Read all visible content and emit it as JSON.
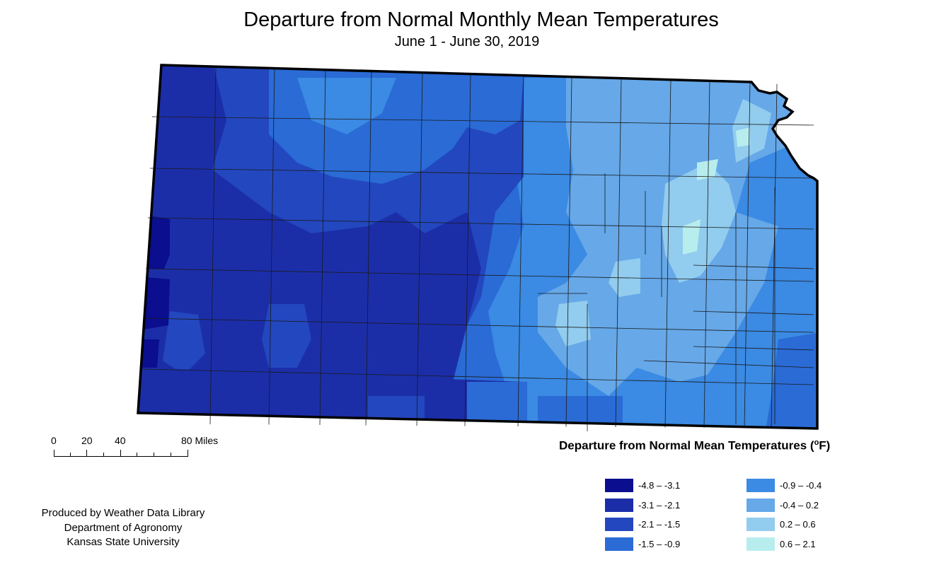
{
  "header": {
    "title": "Departure from Normal Monthly Mean Temperatures",
    "subtitle": "June 1 - June 30, 2019"
  },
  "scale_bar": {
    "labels": [
      "0",
      "20",
      "40",
      "80 Miles"
    ]
  },
  "credits": {
    "line1": "Produced by Weather Data Library",
    "line2": "Department of Agronomy",
    "line3": "Kansas State University"
  },
  "legend": {
    "title": "Departure from Normal Mean Temperatures (",
    "unit_sup": "o",
    "unit_end": "F)",
    "classes": [
      {
        "label": "-4.8 – -3.1",
        "color": "#0A0E8F"
      },
      {
        "label": "-3.1 – -2.1",
        "color": "#1B2EA8"
      },
      {
        "label": "-2.1 – -1.5",
        "color": "#2347BE"
      },
      {
        "label": "-1.5 – -0.9",
        "color": "#2A6BD6"
      },
      {
        "label": "-0.9 – -0.4",
        "color": "#3B8AE3"
      },
      {
        "label": "-0.4 – 0.2",
        "color": "#66A8E8"
      },
      {
        "label": "0.2 – 0.6",
        "color": "#92CCEE"
      },
      {
        "label": "0.6 – 2.1",
        "color": "#B8EDEE"
      }
    ]
  },
  "map": {
    "region": "Kansas",
    "zones": [
      {
        "class": 1,
        "description": "far western border"
      },
      {
        "class": 2,
        "description": "western and southwestern counties"
      },
      {
        "class": 3,
        "description": "west-central and central counties"
      },
      {
        "class": 4,
        "description": "north-central and south-central counties"
      },
      {
        "class": 5,
        "description": "eastern and southeastern counties"
      },
      {
        "class": 6,
        "description": "northeast and east-central counties"
      },
      {
        "class": 7,
        "description": "Flint Hills / east-central pockets"
      },
      {
        "class": 8,
        "description": "small pockets east-central and northeast"
      }
    ]
  }
}
